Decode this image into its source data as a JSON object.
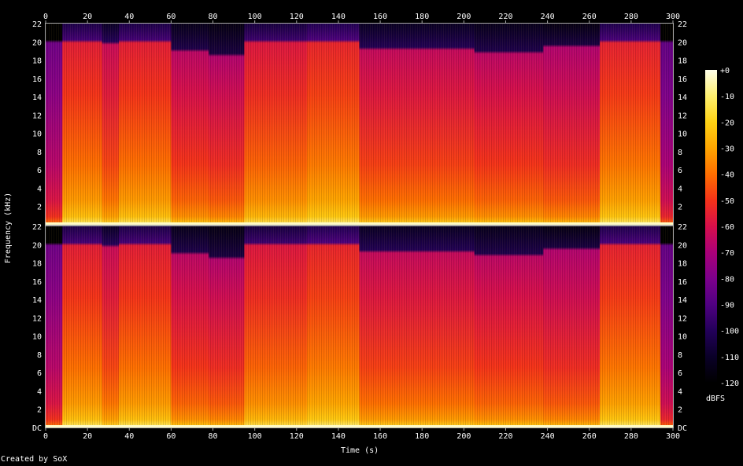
{
  "chart_data": {
    "type": "heatmap",
    "title": "",
    "xlabel": "Time (s)",
    "ylabel": "Frequency (kHz)",
    "colorbar_label": "dBFS",
    "xlim": [
      0,
      300
    ],
    "ylim": [
      0,
      22
    ],
    "x_ticks": [
      "0",
      "20",
      "40",
      "60",
      "80",
      "100",
      "120",
      "140",
      "160",
      "180",
      "200",
      "220",
      "240",
      "260",
      "280",
      "300"
    ],
    "y_ticks_left_top": [
      "2",
      "4",
      "6",
      "8",
      "10",
      "12",
      "14",
      "16",
      "18",
      "20",
      "22"
    ],
    "y_ticks_left_bottom": [
      "DC",
      "2",
      "4",
      "6",
      "8",
      "10",
      "12",
      "14",
      "16",
      "18",
      "20",
      "22"
    ],
    "y_ticks_right": [
      "DC",
      "2",
      "4",
      "6",
      "8",
      "10",
      "12",
      "14",
      "16",
      "18",
      "20",
      "22"
    ],
    "colorbar_ticks": [
      "+0",
      "-10",
      "-20",
      "-30",
      "-40",
      "-50",
      "-60",
      "-70",
      "-80",
      "-90",
      "-100",
      "-110",
      "-120"
    ],
    "colorbar_range": [
      -120,
      0
    ],
    "channels": 2,
    "segments": [
      {
        "t0": 0,
        "t1": 8,
        "cutoff_khz": 20.0,
        "level_db": -75
      },
      {
        "t0": 8,
        "t1": 27,
        "cutoff_khz": 20.0,
        "level_db": -48
      },
      {
        "t0": 27,
        "t1": 35,
        "cutoff_khz": 19.8,
        "level_db": -55
      },
      {
        "t0": 35,
        "t1": 60,
        "cutoff_khz": 20.0,
        "level_db": -48
      },
      {
        "t0": 60,
        "t1": 78,
        "cutoff_khz": 19.0,
        "level_db": -58
      },
      {
        "t0": 78,
        "t1": 95,
        "cutoff_khz": 18.5,
        "level_db": -60
      },
      {
        "t0": 95,
        "t1": 125,
        "cutoff_khz": 20.0,
        "level_db": -50
      },
      {
        "t0": 125,
        "t1": 150,
        "cutoff_khz": 20.0,
        "level_db": -46
      },
      {
        "t0": 150,
        "t1": 205,
        "cutoff_khz": 19.2,
        "level_db": -56
      },
      {
        "t0": 205,
        "t1": 238,
        "cutoff_khz": 18.8,
        "level_db": -58
      },
      {
        "t0": 238,
        "t1": 265,
        "cutoff_khz": 19.5,
        "level_db": -60
      },
      {
        "t0": 265,
        "t1": 294,
        "cutoff_khz": 20.0,
        "level_db": -47
      },
      {
        "t0": 294,
        "t1": 300,
        "cutoff_khz": 20.0,
        "level_db": -78
      }
    ],
    "colormap": "sox-spectrogram"
  },
  "footer": {
    "credit": "Created by SoX"
  }
}
